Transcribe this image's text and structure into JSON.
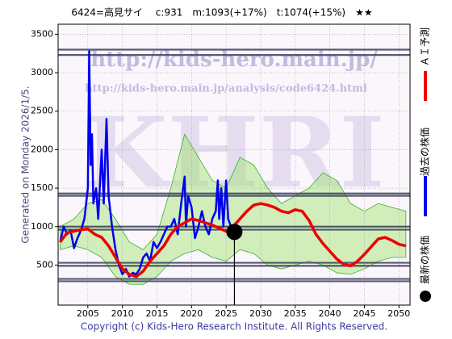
{
  "chart_data": {
    "type": "line",
    "title": "6424=高見サイ　 c:931　m:1093(+17%)　t:1074(+15%)　★★",
    "generated": "Generated on Monday 2026/1/5.",
    "copyright": "Copyright (c) Kids-Hero Research Institute. All Rights Reserved.",
    "watermarks": [
      "http://kids-hero.main.jp/",
      "http://kids-hero.main.jp/analysis/code6424.html",
      "KHRI"
    ],
    "xlim": [
      2000.7,
      2051.6
    ],
    "ylim": [
      -20,
      3630
    ],
    "xticks": [
      2005,
      2010,
      2015,
      2020,
      2025,
      2030,
      2035,
      2040,
      2045,
      2050
    ],
    "yticks": [
      500,
      1000,
      1500,
      2000,
      2500,
      3000,
      3500
    ],
    "grid": true,
    "levels": [
      3300,
      3230,
      1430,
      1400,
      1000,
      960,
      530,
      490,
      320,
      290
    ],
    "level_color": "#3a3f5c",
    "band": {
      "color": "#9be36a",
      "x": [
        2001,
        2003,
        2005,
        2007,
        2009,
        2011,
        2013,
        2015,
        2017,
        2019,
        2021,
        2023,
        2025,
        2027,
        2029,
        2031,
        2033,
        2035,
        2037,
        2039,
        2041,
        2043,
        2045,
        2047,
        2049,
        2051
      ],
      "upper": [
        1000,
        1100,
        1300,
        1350,
        1100,
        800,
        700,
        900,
        1500,
        2200,
        1900,
        1600,
        1500,
        1900,
        1800,
        1500,
        1300,
        1400,
        1500,
        1700,
        1600,
        1300,
        1200,
        1300,
        1250,
        1200
      ],
      "lower": [
        700,
        750,
        700,
        600,
        350,
        250,
        250,
        350,
        550,
        650,
        700,
        600,
        550,
        700,
        650,
        500,
        450,
        500,
        550,
        500,
        400,
        380,
        450,
        550,
        600,
        600
      ]
    },
    "series": [
      {
        "name": "過去の株価",
        "color": "#0000ee",
        "x": [
          2001,
          2001.5,
          2002,
          2002.5,
          2003,
          2003.5,
          2004,
          2004.5,
          2005,
          2005.2,
          2005.4,
          2005.6,
          2005.8,
          2006.2,
          2006.5,
          2007,
          2007.3,
          2007.7,
          2008,
          2008.5,
          2009,
          2009.5,
          2010,
          2010.5,
          2011,
          2011.5,
          2012,
          2012.5,
          2013,
          2013.5,
          2014,
          2014.5,
          2015,
          2015.5,
          2016,
          2016.5,
          2017,
          2017.5,
          2018,
          2018.5,
          2019,
          2019.2,
          2019.5,
          2020,
          2020.5,
          2021,
          2021.5,
          2022,
          2022.5,
          2023,
          2023.5,
          2023.8,
          2024,
          2024.3,
          2024.6,
          2025,
          2025.3,
          2025.7,
          2026
        ],
        "values": [
          800,
          1000,
          900,
          950,
          720,
          850,
          950,
          1100,
          1500,
          3280,
          1800,
          2200,
          1300,
          1500,
          1100,
          2000,
          1300,
          2400,
          1400,
          1000,
          700,
          500,
          380,
          450,
          350,
          400,
          380,
          450,
          600,
          650,
          550,
          800,
          720,
          800,
          900,
          1000,
          1000,
          1100,
          900,
          1300,
          1650,
          1000,
          1400,
          1250,
          850,
          1000,
          1200,
          1000,
          900,
          1100,
          1200,
          1600,
          1100,
          1500,
          1000,
          1600,
          1100,
          1000,
          931
        ]
      },
      {
        "name": "ＡＩ予測",
        "color": "#ee0000",
        "x": [
          2001,
          2002,
          2004,
          2005,
          2006,
          2007,
          2008,
          2009,
          2010,
          2011,
          2012,
          2013,
          2014,
          2015,
          2016,
          2017,
          2018,
          2019,
          2020,
          2021,
          2022,
          2023,
          2024,
          2025,
          2026,
          2027,
          2028,
          2029,
          2030,
          2031,
          2032,
          2033,
          2034,
          2035,
          2036,
          2037,
          2038,
          2039,
          2040,
          2041,
          2042,
          2043,
          2044,
          2045,
          2046,
          2047,
          2048,
          2049,
          2050,
          2051
        ],
        "values": [
          800,
          920,
          960,
          970,
          900,
          860,
          750,
          600,
          450,
          380,
          350,
          420,
          550,
          650,
          750,
          900,
          1000,
          1050,
          1100,
          1080,
          1050,
          1020,
          980,
          940,
          1000,
          1100,
          1200,
          1280,
          1300,
          1280,
          1250,
          1200,
          1180,
          1220,
          1200,
          1080,
          900,
          780,
          680,
          580,
          510,
          490,
          550,
          640,
          740,
          840,
          860,
          820,
          770,
          750
        ]
      }
    ],
    "current": {
      "name": "最新の株価",
      "x": 2026.2,
      "value": 931,
      "color": "#000000"
    }
  }
}
